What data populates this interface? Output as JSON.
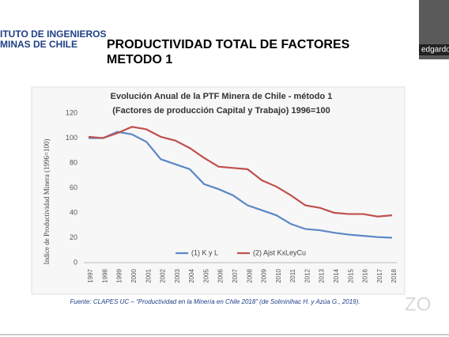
{
  "header": {
    "logo_lines": [
      "ITUTO DE INGENIEROS",
      "MINAS DE CHILE"
    ],
    "title_lines": [
      "PRODUCTIVIDAD TOTAL DE FACTORES",
      "METODO 1"
    ]
  },
  "participant": {
    "name": "edgardo"
  },
  "watermark": "ZO",
  "chart_data": {
    "type": "line",
    "title_lines": [
      "Evolución Anual de la PTF Minera de Chile - método 1",
      "(Factores de producción Capital y Trabajo) 1996=100"
    ],
    "y_label": "Indice de Productividad Minera (1996=100)",
    "categories": [
      "1997",
      "1998",
      "1999",
      "2000",
      "2001",
      "2002",
      "2003",
      "2004",
      "2005",
      "2006",
      "2007",
      "2008",
      "2009",
      "2010",
      "2011",
      "2012",
      "2013",
      "2014",
      "2015",
      "2016",
      "2017",
      "2018"
    ],
    "series": [
      {
        "name": "(1) K y L",
        "color": "#5b87c5",
        "values": [
          100,
          100,
          105,
          103,
          97,
          83,
          79,
          75,
          63,
          59,
          54,
          46,
          42,
          38,
          31,
          27,
          26,
          24,
          22.5,
          21.5,
          20.5,
          20
        ]
      },
      {
        "name": "(2) Ajst KxLeyCu",
        "color": "#c0504d",
        "values": [
          101,
          100,
          104,
          109,
          107,
          101,
          98,
          92,
          84,
          77,
          76,
          75,
          66,
          61,
          54,
          46,
          44,
          40,
          39,
          39,
          37,
          38
        ]
      }
    ],
    "ylim": [
      0,
      120
    ],
    "yticks": [
      0,
      20,
      40,
      60,
      80,
      100,
      120
    ],
    "grid": false,
    "source": "Fuente: CLAPES UC – “Productividad en la Minería en Chile 2018” (de Solminihac H. y Azúa G., 2019)."
  }
}
